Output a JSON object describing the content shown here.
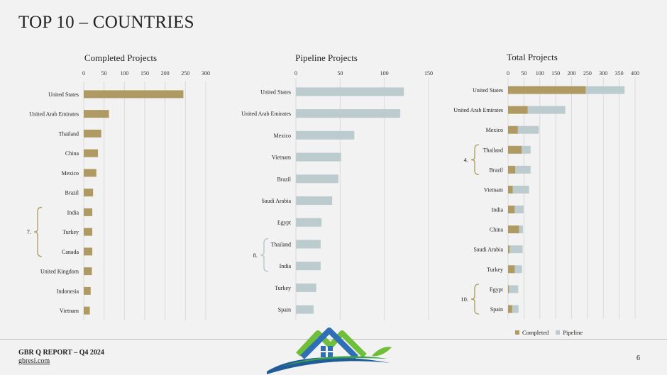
{
  "page": {
    "title": "TOP 10 – COUNTRIES",
    "footer_report": "GBR Q REPORT – Q4 2024",
    "footer_link": "gbresi.com",
    "page_number": "6"
  },
  "colors": {
    "completed": "#b09a63",
    "pipeline": "#bccbce",
    "grid": "#d9d9d9",
    "bracket": "#b09a63",
    "bracket_alt": "#b5c2c6"
  },
  "legend": {
    "completed": "Completed",
    "pipeline": "Pipeline"
  },
  "chart_data": [
    {
      "type": "bar",
      "orientation": "horizontal",
      "title": "Completed Projects",
      "xlim": [
        0,
        300
      ],
      "ticks": [
        0,
        50,
        100,
        150,
        200,
        250,
        300
      ],
      "categories": [
        "United States",
        "United Arab Emirates",
        "Thailand",
        "China",
        "Mexico",
        "Brazil",
        "India",
        "Turkey",
        "Canada",
        "United Kingdom",
        "Indonesia",
        "Vietnam"
      ],
      "values": [
        245,
        62,
        43,
        35,
        31,
        23,
        21,
        21,
        21,
        20,
        17,
        15
      ],
      "annotation": {
        "label": "7.",
        "from": "India",
        "to": "Canada"
      }
    },
    {
      "type": "bar",
      "orientation": "horizontal",
      "title": "Pipeline Projects",
      "xlim": [
        0,
        150
      ],
      "ticks": [
        0,
        50,
        100,
        150
      ],
      "categories": [
        "United States",
        "United Arab Emirates",
        "Mexico",
        "Vietnam",
        "Brazil",
        "Saudi Arabia",
        "Egypt",
        "Thailand",
        "India",
        "Turkey",
        "Spain"
      ],
      "values": [
        122,
        118,
        66,
        51,
        48,
        41,
        29,
        28,
        28,
        23,
        20
      ],
      "annotation": {
        "label": "8.",
        "from": "Thailand",
        "to": "India"
      }
    },
    {
      "type": "bar",
      "orientation": "horizontal",
      "stacked": true,
      "title": "Total Projects",
      "xlim": [
        0,
        400
      ],
      "ticks": [
        0,
        50,
        100,
        150,
        200,
        250,
        300,
        350,
        400
      ],
      "categories": [
        "United States",
        "United Arab Emirates",
        "Mexico",
        "Thailand",
        "Brazil",
        "Vietnam",
        "India",
        "China",
        "Saudi Arabia",
        "Turkey",
        "Egypt",
        "Spain"
      ],
      "series": [
        {
          "name": "Completed",
          "values": [
            245,
            62,
            31,
            43,
            23,
            15,
            21,
            35,
            5,
            21,
            3,
            13
          ]
        },
        {
          "name": "Pipeline",
          "values": [
            122,
            118,
            66,
            28,
            48,
            51,
            28,
            12,
            41,
            23,
            29,
            20
          ]
        }
      ],
      "annotations": [
        {
          "label": "4.",
          "from": "Thailand",
          "to": "Brazil"
        },
        {
          "label": "10.",
          "from": "Egypt",
          "to": "Spain"
        }
      ]
    }
  ]
}
